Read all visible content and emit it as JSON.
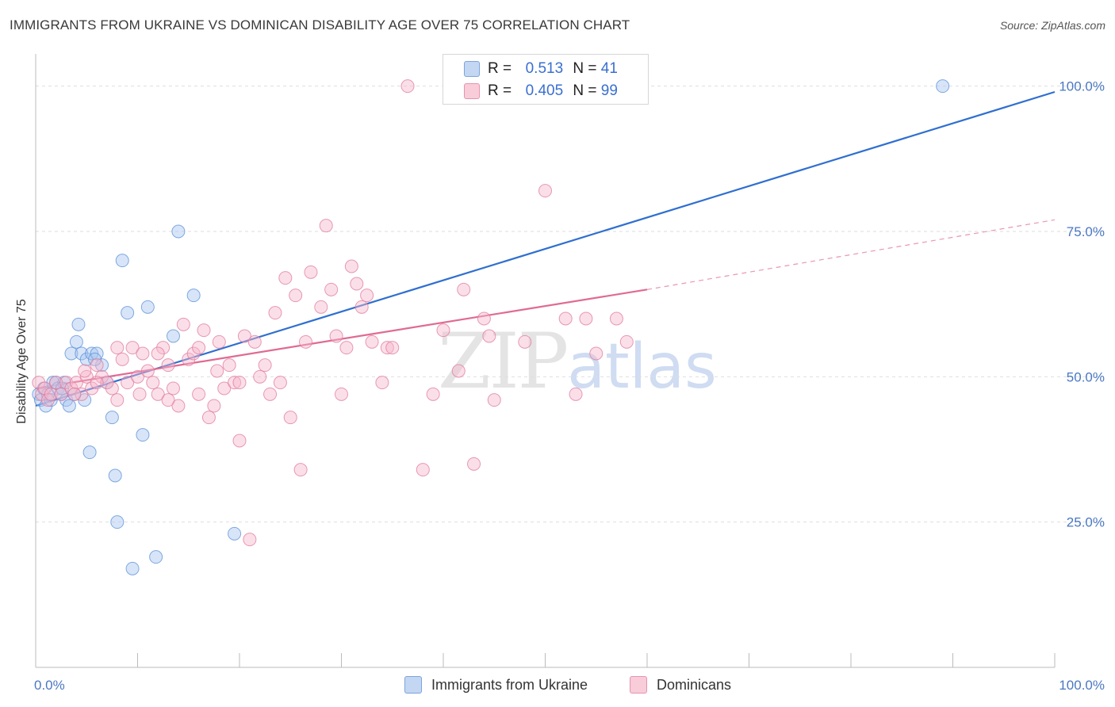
{
  "title": "IMMIGRANTS FROM UKRAINE VS DOMINICAN DISABILITY AGE OVER 75 CORRELATION CHART",
  "source": "Source: ZipAtlas.com",
  "watermark": {
    "zip": "ZIP",
    "atlas": "atlas"
  },
  "legend": {
    "rows": [
      {
        "r_label": "R =",
        "r_value": "0.513",
        "n_label": "N =",
        "n_value": "41",
        "color": "#a9c6f0"
      },
      {
        "r_label": "R =",
        "r_value": "0.405",
        "n_label": "N =",
        "n_value": "99",
        "color": "#f6b8cb"
      }
    ]
  },
  "bottom_legend": [
    {
      "label": "Immigrants from Ukraine",
      "color": "#a9c6f0"
    },
    {
      "label": "Dominicans",
      "color": "#f6b8cb"
    }
  ],
  "chart_data": {
    "type": "scatter",
    "title": "IMMIGRANTS FROM UKRAINE VS DOMINICAN DISABILITY AGE OVER 75 CORRELATION CHART",
    "xlabel": "",
    "ylabel": "Disability Age Over 75",
    "xlim": [
      0,
      100
    ],
    "ylim": [
      0,
      105
    ],
    "x_tick_labels": [
      "0.0%",
      "100.0%"
    ],
    "y_ticks": [
      25,
      50,
      75,
      100
    ],
    "y_tick_labels": [
      "25.0%",
      "50.0%",
      "75.0%",
      "100.0%"
    ],
    "grid": true,
    "legend_position": "top-center",
    "series": [
      {
        "name": "Immigrants from Ukraine",
        "color": "#a9c6f0",
        "stroke": "#5a8fd8",
        "trend_color": "#2f6fd0",
        "trend": {
          "x0": 0,
          "y0": 45,
          "x1": 100,
          "y1": 99,
          "dashed_from": null
        },
        "points": [
          [
            0.3,
            47
          ],
          [
            0.5,
            46
          ],
          [
            0.8,
            48
          ],
          [
            1.0,
            45
          ],
          [
            1.2,
            47
          ],
          [
            1.5,
            46
          ],
          [
            1.7,
            49
          ],
          [
            2.0,
            49
          ],
          [
            2.2,
            48
          ],
          [
            2.5,
            47
          ],
          [
            2.8,
            49
          ],
          [
            3.0,
            46
          ],
          [
            3.3,
            45
          ],
          [
            3.5,
            54
          ],
          [
            4.0,
            56
          ],
          [
            4.2,
            59
          ],
          [
            4.5,
            54
          ],
          [
            4.8,
            46
          ],
          [
            5.0,
            53
          ],
          [
            5.5,
            54
          ],
          [
            6.0,
            54
          ],
          [
            6.5,
            52
          ],
          [
            7.0,
            49
          ],
          [
            7.5,
            43
          ],
          [
            5.3,
            37
          ],
          [
            7.8,
            33
          ],
          [
            8.0,
            25
          ],
          [
            8.5,
            70
          ],
          [
            9.0,
            61
          ],
          [
            9.5,
            17
          ],
          [
            10.5,
            40
          ],
          [
            11.0,
            62
          ],
          [
            11.8,
            19
          ],
          [
            13.5,
            57
          ],
          [
            14.0,
            75
          ],
          [
            15.5,
            64
          ],
          [
            19.5,
            23
          ],
          [
            89.0,
            100
          ],
          [
            2.6,
            48
          ],
          [
            5.8,
            53
          ],
          [
            3.8,
            47
          ]
        ]
      },
      {
        "name": "Dominicans",
        "color": "#f6b8cb",
        "stroke": "#e07a9c",
        "trend_color": "#e06a92",
        "trend": {
          "x0": 0,
          "y0": 48,
          "x1": 60,
          "y1": 65,
          "dashed_to_x": 100,
          "dashed_to_y": 77
        },
        "points": [
          [
            0.3,
            49
          ],
          [
            0.6,
            47
          ],
          [
            0.9,
            48
          ],
          [
            1.2,
            46
          ],
          [
            1.5,
            47
          ],
          [
            2.0,
            49
          ],
          [
            2.5,
            47
          ],
          [
            3.0,
            49
          ],
          [
            3.5,
            48
          ],
          [
            4.0,
            49
          ],
          [
            4.5,
            47
          ],
          [
            5.0,
            50
          ],
          [
            5.5,
            48
          ],
          [
            6.0,
            52
          ],
          [
            6.5,
            50
          ],
          [
            7.0,
            49
          ],
          [
            7.5,
            48
          ],
          [
            8.0,
            55
          ],
          [
            8.5,
            53
          ],
          [
            9.0,
            49
          ],
          [
            9.5,
            55
          ],
          [
            10.0,
            50
          ],
          [
            10.5,
            54
          ],
          [
            11.0,
            51
          ],
          [
            11.5,
            49
          ],
          [
            12.0,
            47
          ],
          [
            12.5,
            55
          ],
          [
            13.0,
            52
          ],
          [
            13.5,
            48
          ],
          [
            14.0,
            45
          ],
          [
            14.5,
            59
          ],
          [
            15.0,
            53
          ],
          [
            15.5,
            54
          ],
          [
            16.0,
            47
          ],
          [
            16.5,
            58
          ],
          [
            17.0,
            43
          ],
          [
            17.5,
            45
          ],
          [
            18.0,
            56
          ],
          [
            18.5,
            48
          ],
          [
            19.0,
            52
          ],
          [
            19.5,
            49
          ],
          [
            20.0,
            39
          ],
          [
            20.5,
            57
          ],
          [
            21.0,
            22
          ],
          [
            21.5,
            56
          ],
          [
            22.0,
            50
          ],
          [
            22.5,
            52
          ],
          [
            23.0,
            47
          ],
          [
            23.5,
            61
          ],
          [
            24.0,
            49
          ],
          [
            24.5,
            67
          ],
          [
            25.0,
            43
          ],
          [
            25.5,
            64
          ],
          [
            26.0,
            34
          ],
          [
            26.5,
            56
          ],
          [
            27.0,
            68
          ],
          [
            28.0,
            62
          ],
          [
            28.5,
            76
          ],
          [
            29.0,
            65
          ],
          [
            29.5,
            57
          ],
          [
            30.0,
            47
          ],
          [
            30.5,
            55
          ],
          [
            31.0,
            69
          ],
          [
            31.5,
            66
          ],
          [
            32.0,
            62
          ],
          [
            32.5,
            64
          ],
          [
            33.0,
            56
          ],
          [
            34.0,
            49
          ],
          [
            34.5,
            55
          ],
          [
            35.0,
            55
          ],
          [
            36.5,
            100
          ],
          [
            38.0,
            34
          ],
          [
            39.0,
            47
          ],
          [
            40.0,
            58
          ],
          [
            41.5,
            51
          ],
          [
            42.0,
            65
          ],
          [
            43.0,
            35
          ],
          [
            44.0,
            60
          ],
          [
            44.5,
            57
          ],
          [
            45.0,
            46
          ],
          [
            47.0,
            100
          ],
          [
            48.0,
            56
          ],
          [
            50.0,
            82
          ],
          [
            52.0,
            60
          ],
          [
            53.0,
            47
          ],
          [
            54.0,
            60
          ],
          [
            55.0,
            54
          ],
          [
            57.0,
            60
          ],
          [
            58.0,
            56
          ],
          [
            20.0,
            49
          ],
          [
            12.0,
            54
          ],
          [
            8.0,
            46
          ],
          [
            6.0,
            49
          ],
          [
            4.8,
            51
          ],
          [
            3.8,
            47
          ],
          [
            10.2,
            47
          ],
          [
            16.0,
            55
          ],
          [
            17.8,
            51
          ],
          [
            13.0,
            46
          ]
        ]
      }
    ]
  }
}
